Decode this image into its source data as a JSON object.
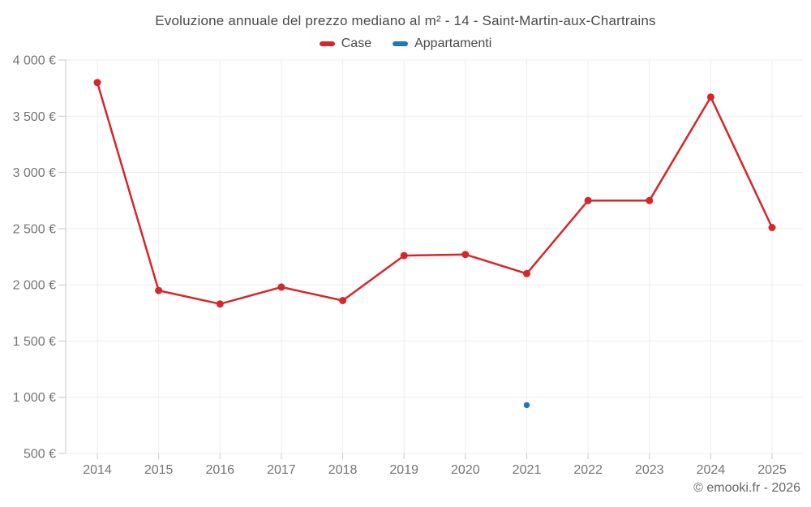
{
  "chart_data": {
    "type": "line",
    "title": "Evoluzione annuale del prezzo mediano al m² - 14 - Saint-Martin-aux-Chartrains",
    "categories": [
      "2014",
      "2015",
      "2016",
      "2017",
      "2018",
      "2019",
      "2020",
      "2021",
      "2022",
      "2023",
      "2024",
      "2025"
    ],
    "series": [
      {
        "name": "Case",
        "color": "#d62728",
        "values": [
          3800,
          1950,
          1830,
          1980,
          1860,
          2260,
          2270,
          2100,
          2750,
          2750,
          3670,
          2510
        ]
      },
      {
        "name": "Appartamenti",
        "color": "#1f77b4",
        "values": [
          null,
          null,
          null,
          null,
          null,
          null,
          null,
          930,
          null,
          null,
          null,
          null
        ]
      }
    ],
    "ylim": [
      500,
      4000
    ],
    "ytick_step": 500,
    "y_unit": "€",
    "grid": true,
    "legend_position": "top",
    "attribution": "© emooki.fr - 2026",
    "colors": {
      "grid": "#ededed",
      "axis": "#c9c9c9",
      "tick_label": "#757575",
      "title_text": "#4a4a4a",
      "attribution_text": "#666666",
      "background": "#ffffff"
    }
  }
}
